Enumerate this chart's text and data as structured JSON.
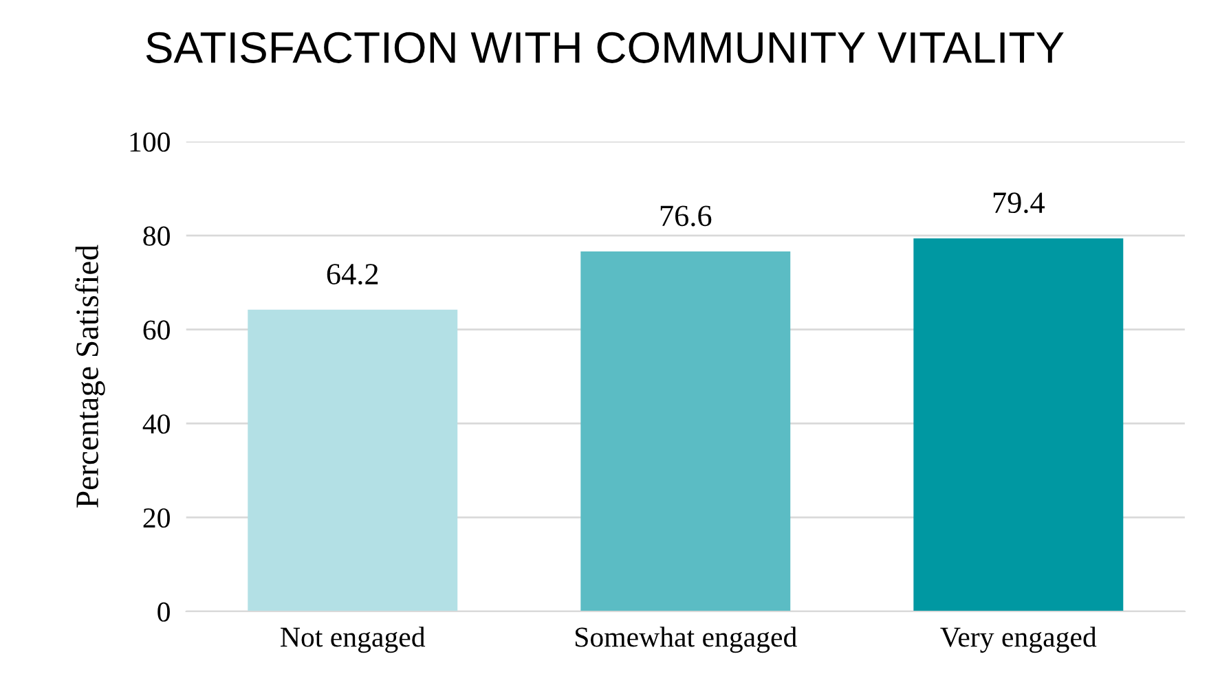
{
  "chart_data": {
    "type": "bar",
    "title": "SATISFACTION WITH COMMUNITY VITALITY",
    "ylabel": "Percentage Satisfied",
    "categories": [
      "Not engaged",
      "Somewhat engaged",
      "Very engaged"
    ],
    "values": [
      64.2,
      76.6,
      79.4
    ],
    "colors": [
      "#b3e0e5",
      "#5bbcc4",
      "#0098a2"
    ],
    "ylim": [
      0,
      100
    ],
    "yticks": [
      0,
      20,
      40,
      60,
      80,
      100
    ],
    "grid": "y",
    "data_labels": true,
    "legend": false
  }
}
